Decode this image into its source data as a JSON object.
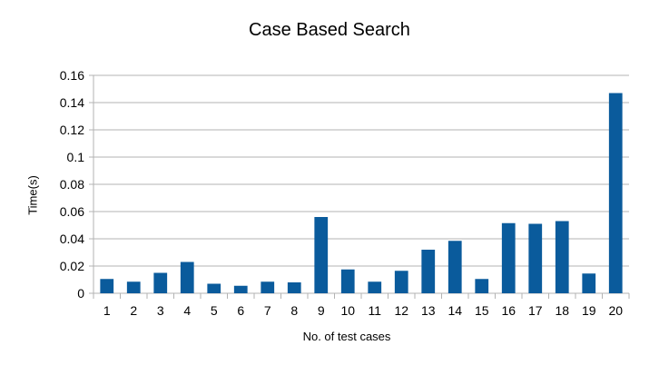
{
  "chart_data": {
    "type": "bar",
    "title": "Case Based Search",
    "xlabel": "No. of test cases",
    "ylabel": "Time(s)",
    "categories": [
      "1",
      "2",
      "3",
      "4",
      "5",
      "6",
      "7",
      "8",
      "9",
      "10",
      "11",
      "12",
      "13",
      "14",
      "15",
      "16",
      "17",
      "18",
      "19",
      "20"
    ],
    "values": [
      0.0105,
      0.0085,
      0.015,
      0.023,
      0.007,
      0.0055,
      0.0085,
      0.008,
      0.056,
      0.0175,
      0.0085,
      0.0165,
      0.032,
      0.0385,
      0.0105,
      0.0515,
      0.051,
      0.053,
      0.0145,
      0.147
    ],
    "ylim": [
      0,
      0.16
    ],
    "yticks": [
      "0",
      "0.02",
      "0.04",
      "0.06",
      "0.08",
      "0.1",
      "0.12",
      "0.14",
      "0.16"
    ],
    "grid": true,
    "legend": "none",
    "bar_color": "#0a5b9c",
    "grid_color": "#b3b3b3",
    "axis_color": "#b3b3b3"
  }
}
